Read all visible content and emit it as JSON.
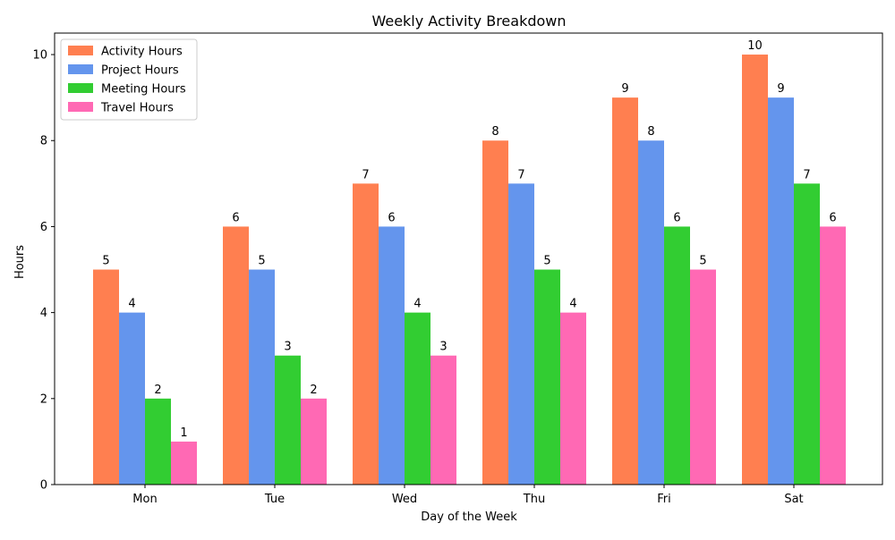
{
  "chart_data": {
    "type": "bar",
    "title": "Weekly Activity Breakdown",
    "xlabel": "Day of the Week",
    "ylabel": "Hours",
    "ylim": [
      0,
      10.5
    ],
    "yticks": [
      0,
      2,
      4,
      6,
      8,
      10
    ],
    "grid": false,
    "legend_position": "top-left",
    "categories": [
      "Mon",
      "Tue",
      "Wed",
      "Thu",
      "Fri",
      "Sat"
    ],
    "series": [
      {
        "name": "Activity Hours",
        "color": "#FF7F50",
        "values": [
          5,
          6,
          7,
          8,
          9,
          10
        ]
      },
      {
        "name": "Project Hours",
        "color": "#6495ED",
        "values": [
          4,
          5,
          6,
          7,
          8,
          9
        ]
      },
      {
        "name": "Meeting Hours",
        "color": "#32CD32",
        "values": [
          2,
          3,
          4,
          5,
          6,
          7
        ]
      },
      {
        "name": "Travel Hours",
        "color": "#FF69B4",
        "values": [
          1,
          2,
          3,
          4,
          5,
          6
        ]
      }
    ]
  }
}
